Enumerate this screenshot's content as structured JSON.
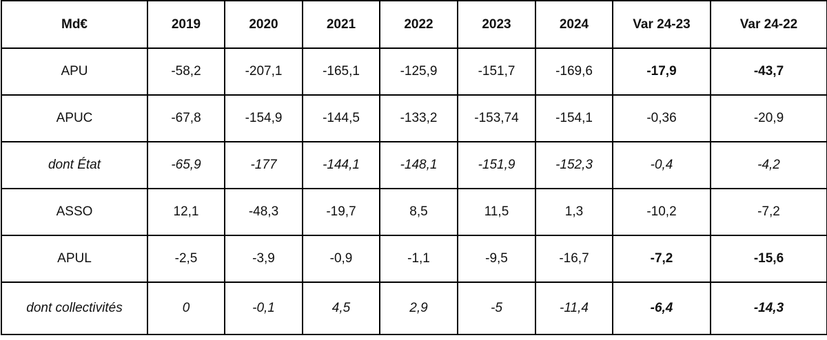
{
  "table": {
    "headers": [
      "Md€",
      "2019",
      "2020",
      "2021",
      "2022",
      "2023",
      "2024",
      "Var 24-23",
      "Var 24-22"
    ],
    "rows": [
      {
        "cells": [
          "APU",
          "-58,2",
          "-207,1",
          "-165,1",
          "-125,9",
          "-151,7",
          "-169,6",
          "-17,9",
          "-43,7"
        ]
      },
      {
        "cells": [
          "APUC",
          "-67,8",
          "-154,9",
          "-144,5",
          "-133,2",
          "-153,74",
          "-154,1",
          "-0,36",
          "-20,9"
        ]
      },
      {
        "cells": [
          "dont État",
          "-65,9",
          "-177",
          "-144,1",
          "-148,1",
          "-151,9",
          "-152,3",
          "-0,4",
          "-4,2"
        ]
      },
      {
        "cells": [
          "ASSO",
          "12,1",
          "-48,3",
          "-19,7",
          "8,5",
          "11,5",
          "1,3",
          "-10,2",
          "-7,2"
        ]
      },
      {
        "cells": [
          "APUL",
          "-2,5",
          "-3,9",
          "-0,9",
          "-1,1",
          "-9,5",
          "-16,7",
          "-7,2",
          "-15,6"
        ]
      },
      {
        "cells": [
          "dont collectivités",
          "0",
          "-0,1",
          "4,5",
          "2,9",
          "-5",
          "-11,4",
          "-6,4",
          "-14,3"
        ]
      }
    ]
  }
}
